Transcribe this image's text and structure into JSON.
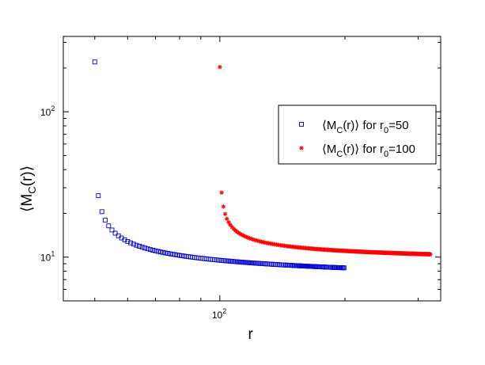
{
  "chart_data": {
    "type": "scatter",
    "title": "",
    "xlabel": "r",
    "ylabel_main": "⟨M",
    "ylabel_sub": "C",
    "ylabel_tail": "(r)⟩",
    "xscale": "log",
    "yscale": "log",
    "xlim": [
      42,
      340
    ],
    "ylim": [
      5,
      330
    ],
    "xticks": [
      {
        "base": "10",
        "exp": "2",
        "value": 100
      }
    ],
    "yticks": [
      {
        "base": "10",
        "exp": "1",
        "value": 10
      },
      {
        "base": "10",
        "exp": "2",
        "value": 100
      }
    ],
    "grid": false,
    "legend_position": "top-right",
    "series": [
      {
        "marker": "square",
        "color": "#0000cc",
        "legend": {
          "pre": "⟨M",
          "sub1": "C",
          "mid": "(r)⟩ for r",
          "sub2": "0",
          "post": "=50"
        },
        "params": {
          "r_start": 50,
          "r_end": 200,
          "step": 1,
          "a": 7.06,
          "b": 19.53,
          "p": 0.53,
          "sparse_until": 60,
          "sparse_step": 1
        }
      },
      {
        "marker": "asterisk",
        "color": "#ff0000",
        "legend": {
          "pre": "⟨M",
          "sub1": "C",
          "mid": "(r)⟩ for r",
          "sub2": "0",
          "post": "=100"
        },
        "params": {
          "r_start": 100,
          "r_end": 322,
          "step": 1,
          "a": 9.34,
          "b": 18.58,
          "p": 0.52,
          "sparse_until": 110,
          "sparse_step": 1
        }
      }
    ]
  }
}
